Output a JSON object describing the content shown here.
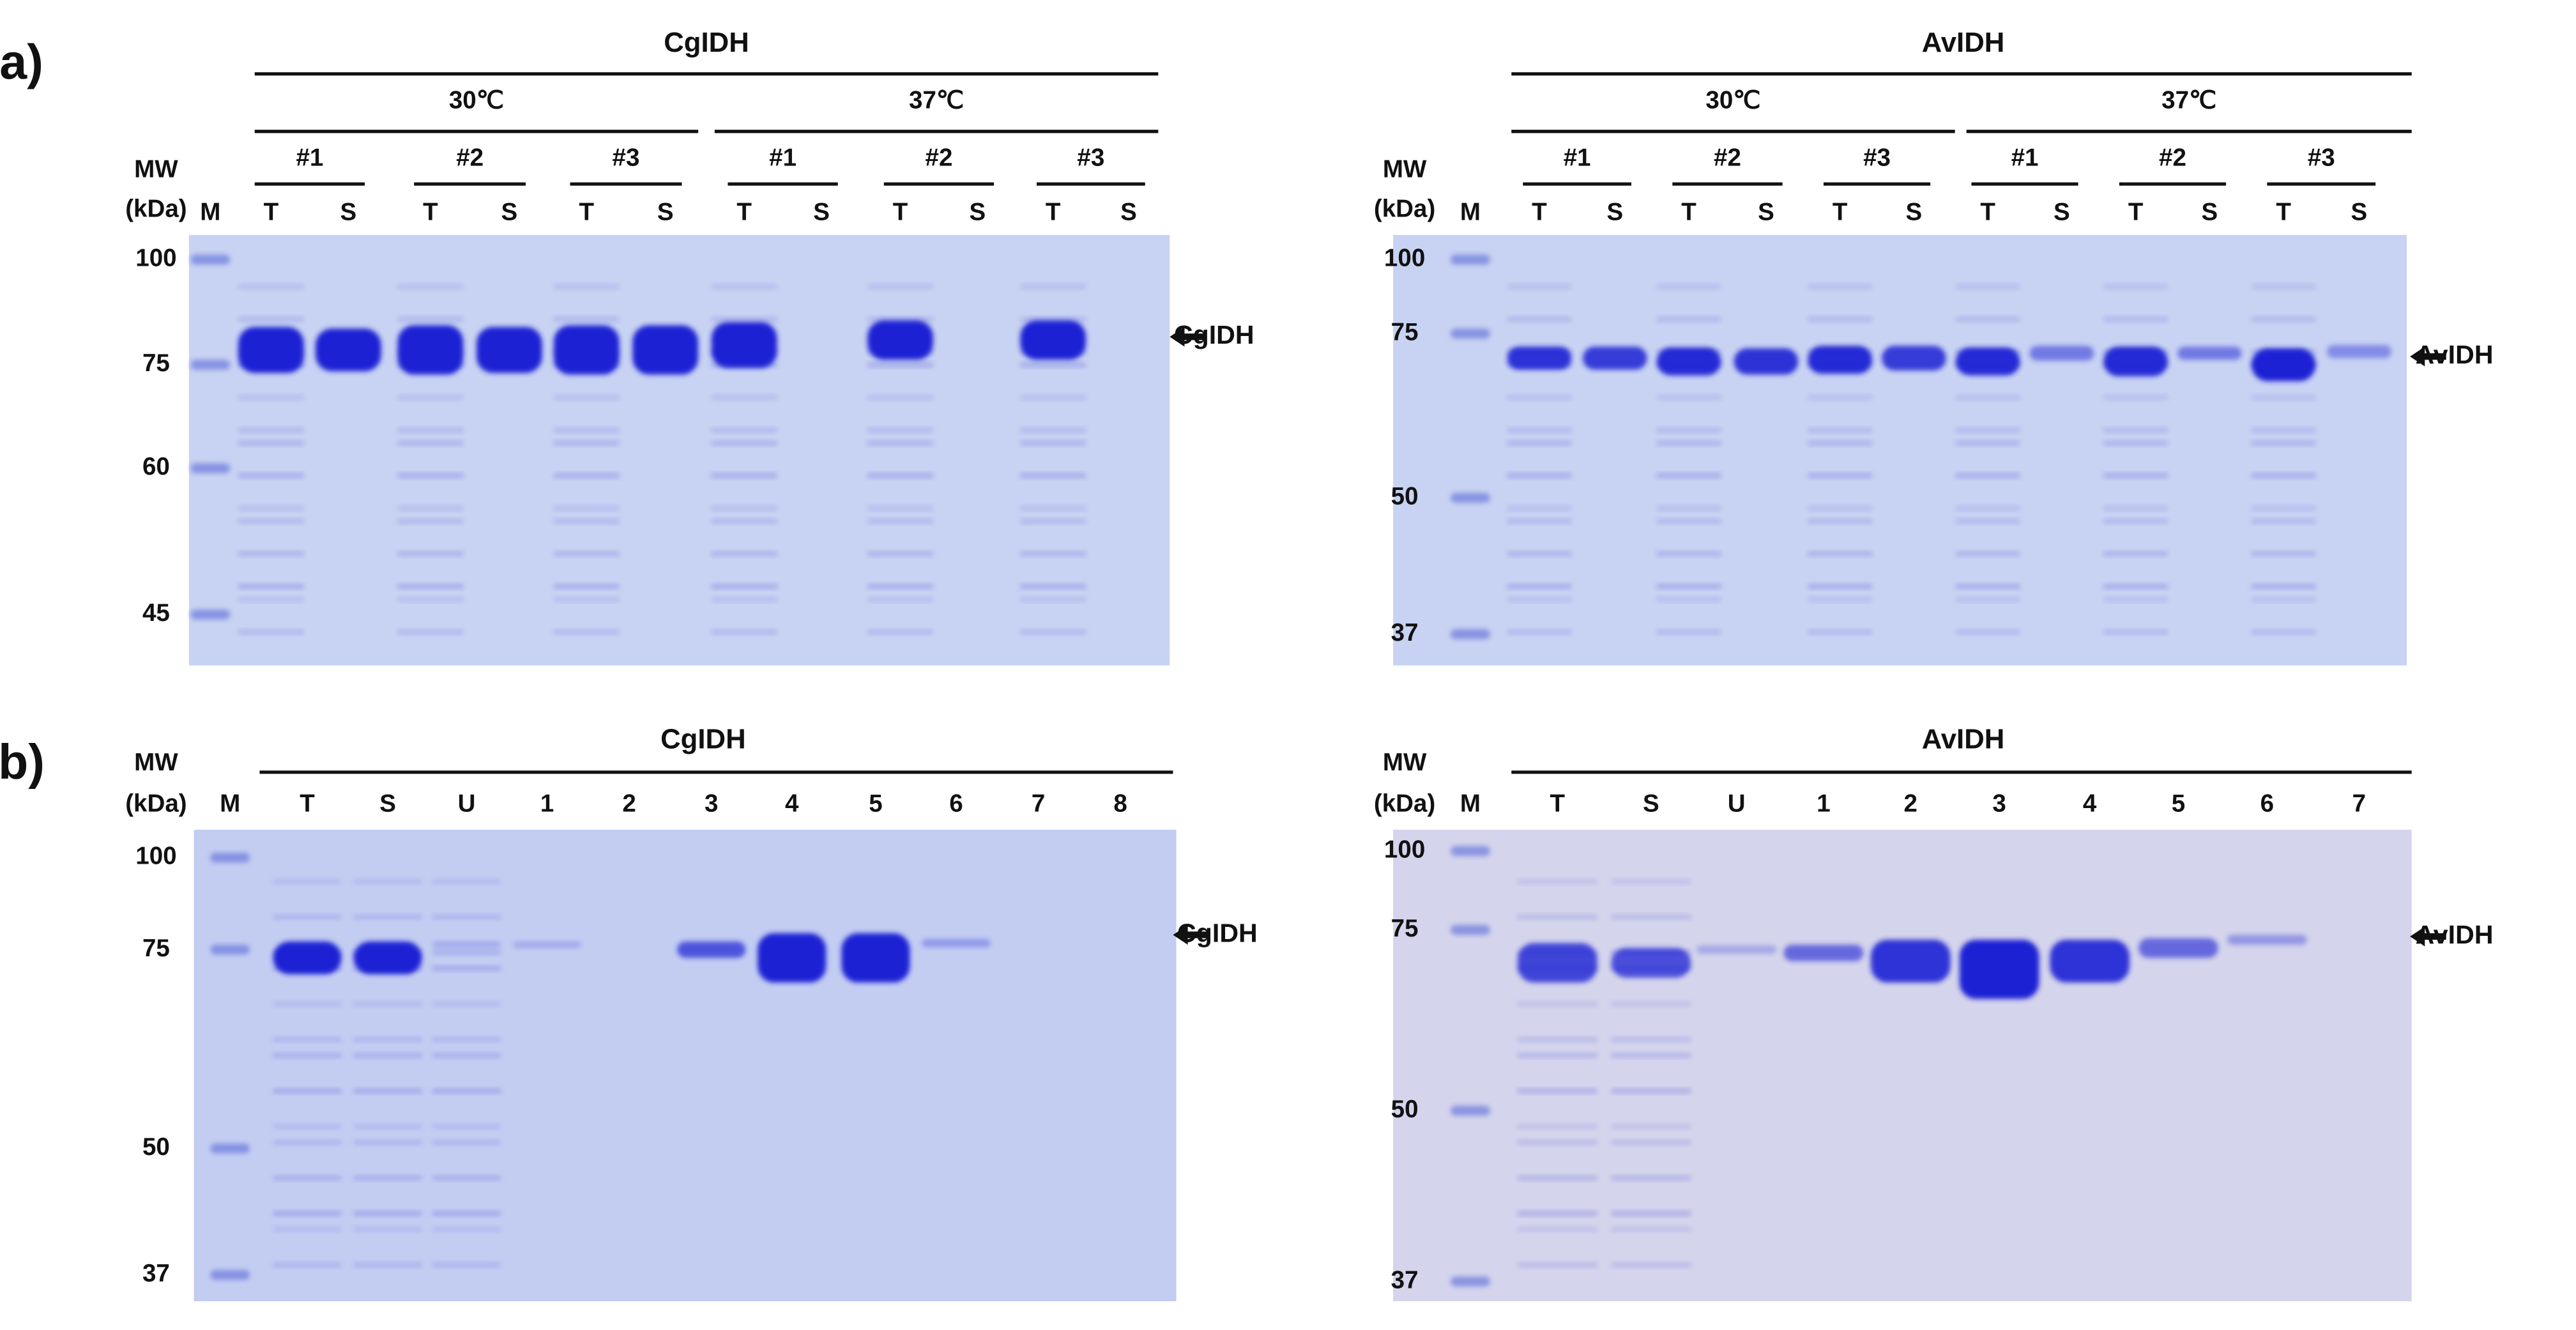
{
  "panels": [
    {
      "label": "(a)",
      "gels": [
        {
          "title": "CgIDH",
          "groups": [
            {
              "label": "30℃",
              "subgroups": [
                "#1",
                "#2",
                "#3"
              ]
            },
            {
              "label": "37℃",
              "subgroups": [
                "#1",
                "#2",
                "#3"
              ]
            }
          ],
          "mw": "MW",
          "mw_unit": "(kDa)",
          "lanes": [
            "M",
            "T",
            "S",
            "T",
            "S",
            "T",
            "S",
            "T",
            "S",
            "T",
            "S",
            "T",
            "S"
          ],
          "markers": [
            100,
            75,
            60,
            45
          ],
          "band_label": "CgIDH"
        },
        {
          "title": "AvIDH",
          "groups": [
            {
              "label": "30℃",
              "subgroups": [
                "#1",
                "#2",
                "#3"
              ]
            },
            {
              "label": "37℃",
              "subgroups": [
                "#1",
                "#2",
                "#3"
              ]
            }
          ],
          "mw": "MW",
          "mw_unit": "(kDa)",
          "lanes": [
            "M",
            "T",
            "S",
            "T",
            "S",
            "T",
            "S",
            "T",
            "S",
            "T",
            "S",
            "T",
            "S"
          ],
          "markers": [
            100,
            75,
            50,
            37
          ],
          "band_label": "AvIDH"
        }
      ]
    },
    {
      "label": "(b)",
      "gels": [
        {
          "title": "CgIDH",
          "mw": "MW",
          "mw_unit": "(kDa)",
          "lanes": [
            "M",
            "T",
            "S",
            "U",
            "1",
            "2",
            "3",
            "4",
            "5",
            "6",
            "7",
            "8"
          ],
          "markers": [
            100,
            75,
            50,
            37
          ],
          "band_label": "CgIDH"
        },
        {
          "title": "AvIDH",
          "mw": "MW",
          "mw_unit": "(kDa)",
          "lanes": [
            "M",
            "T",
            "S",
            "U",
            "1",
            "2",
            "3",
            "4",
            "5",
            "6",
            "7"
          ],
          "markers": [
            100,
            75,
            50,
            37
          ],
          "band_label": "AvIDH"
        }
      ]
    }
  ]
}
